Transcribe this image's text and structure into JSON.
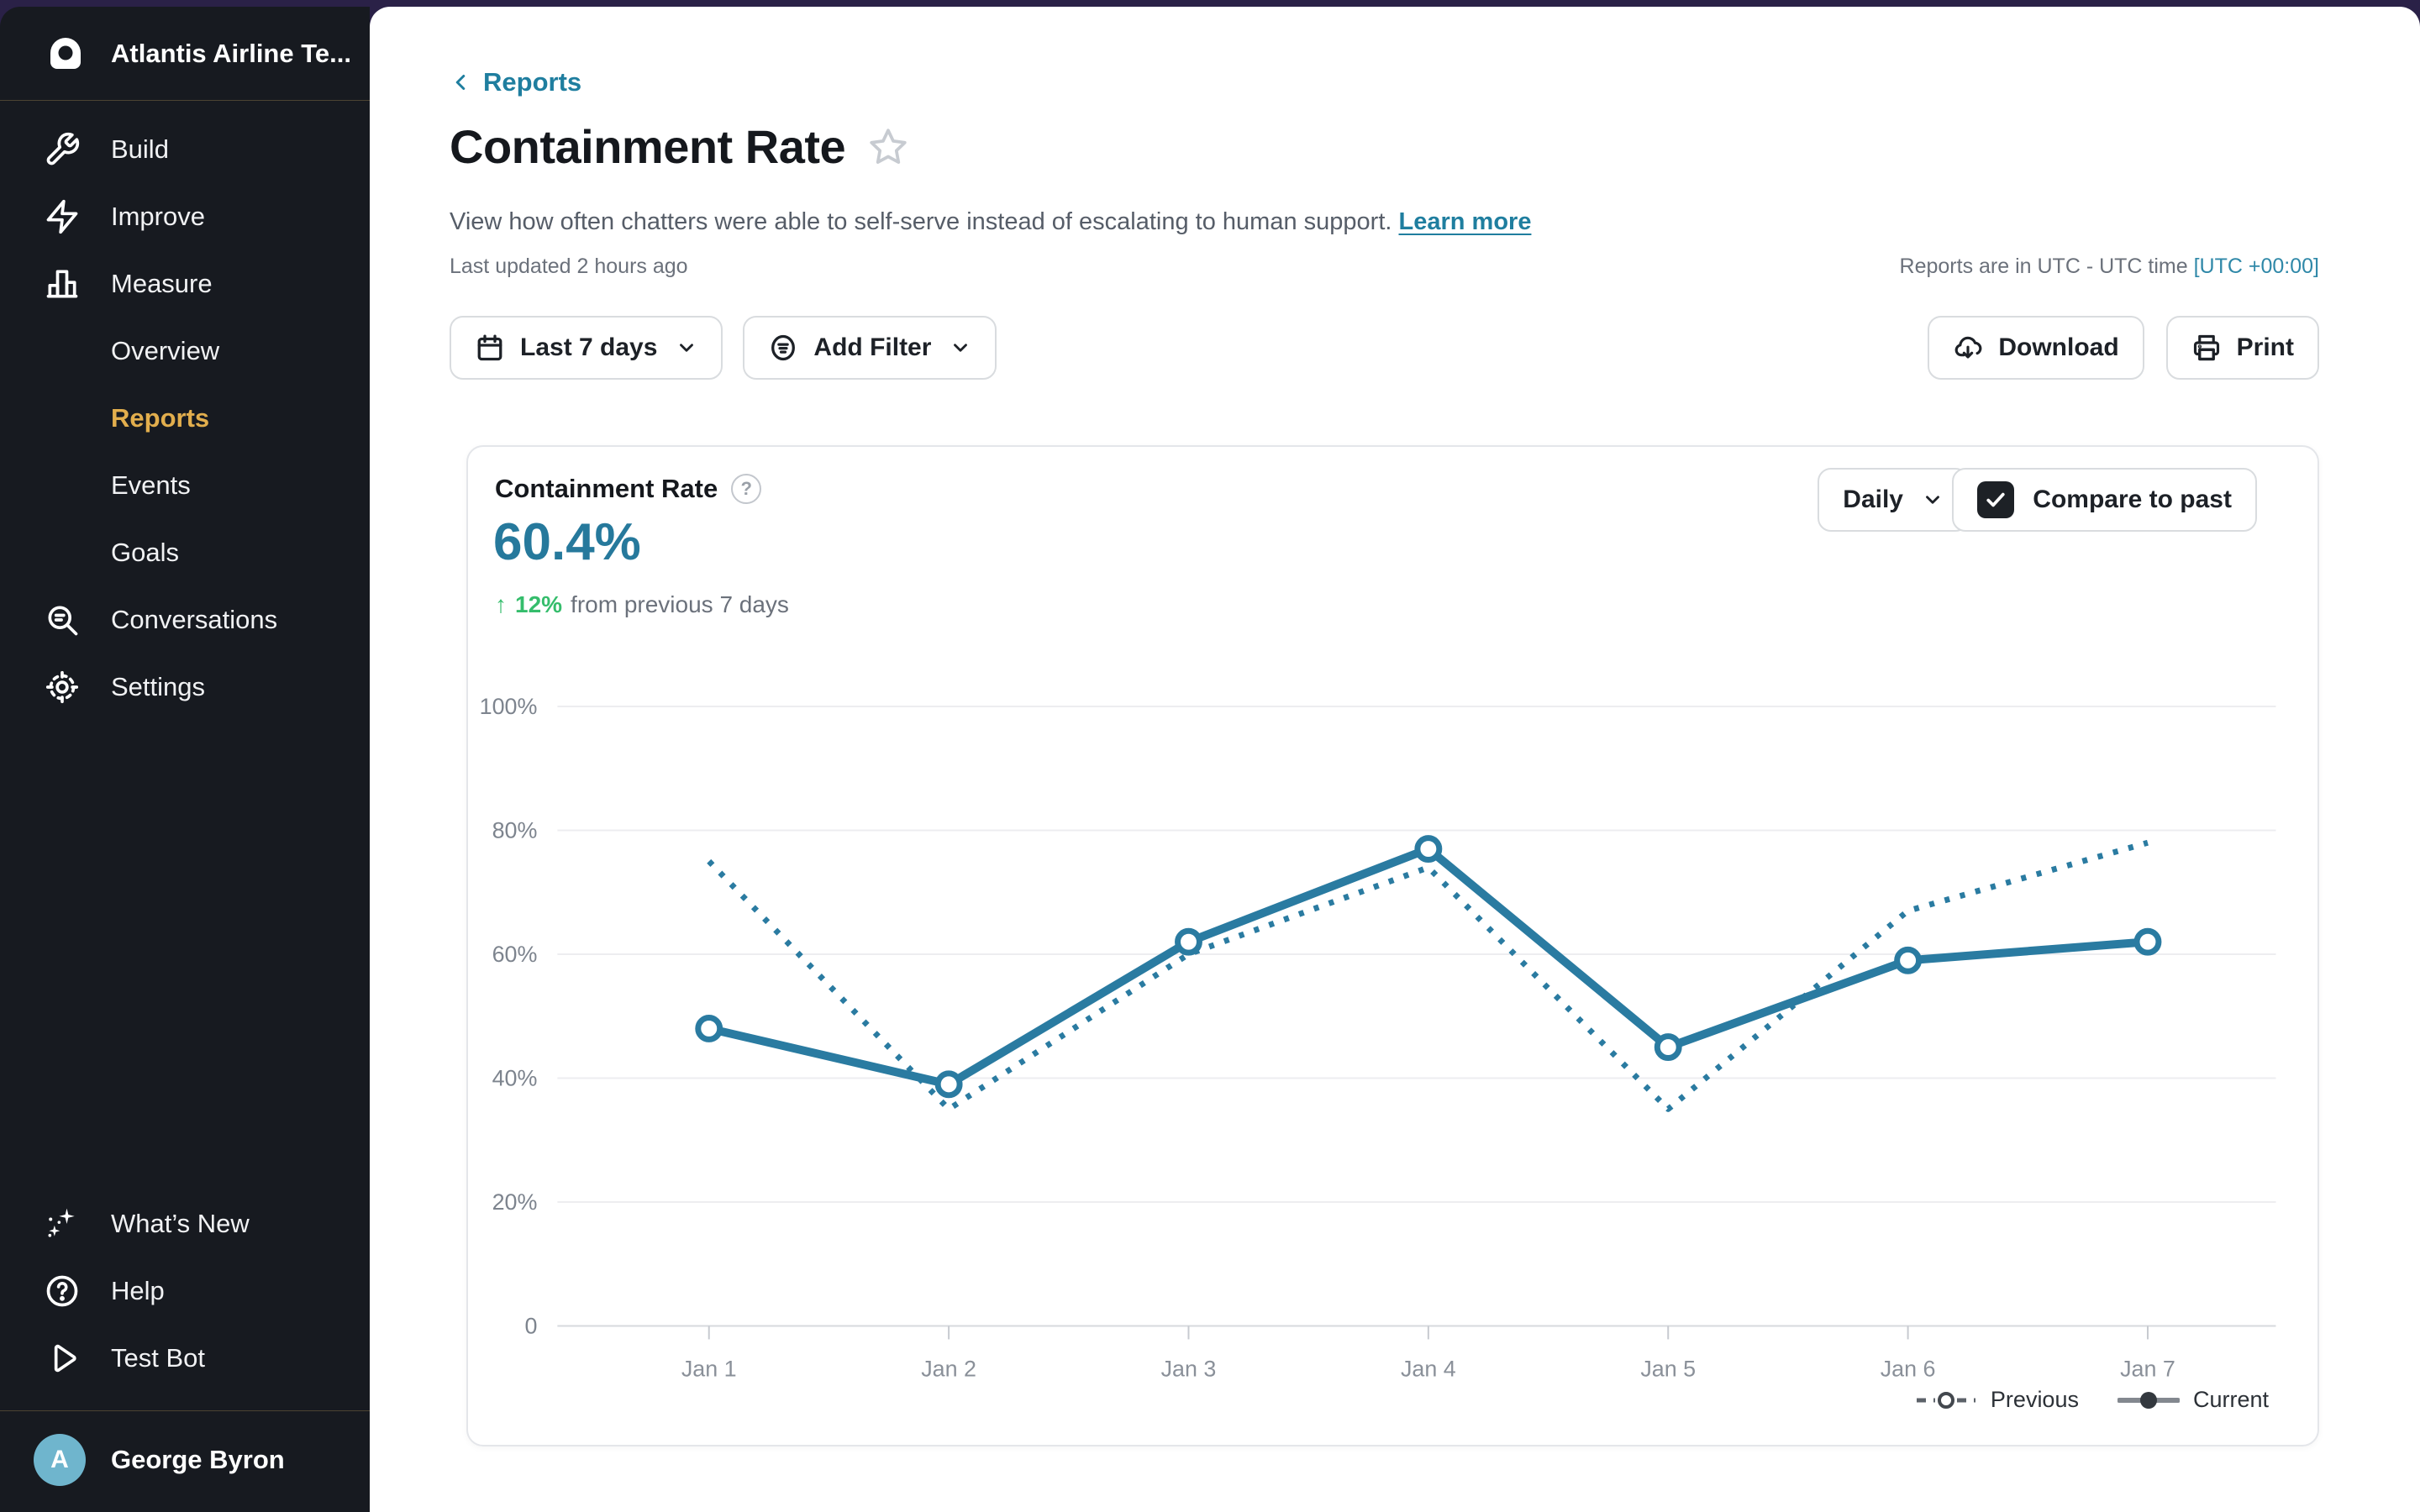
{
  "sidebar": {
    "team_name": "Atlantis Airline Te...",
    "nav": [
      {
        "label": "Build"
      },
      {
        "label": "Improve"
      },
      {
        "label": "Measure"
      },
      {
        "label": "Overview"
      },
      {
        "label": "Reports"
      },
      {
        "label": "Events"
      },
      {
        "label": "Goals"
      },
      {
        "label": "Conversations"
      },
      {
        "label": "Settings"
      }
    ],
    "footer": [
      {
        "label": "What’s New"
      },
      {
        "label": "Help"
      },
      {
        "label": "Test Bot"
      }
    ],
    "user": {
      "name": "George Byron",
      "avatar_initial": "A",
      "avatar_color": "#6fb5cd"
    },
    "active_color": "#e2ae4d"
  },
  "header": {
    "back_label": "Reports",
    "title": "Containment Rate",
    "description": "View how often chatters were able to self-serve instead of escalating to human support.",
    "learn_more": "Learn more",
    "last_updated": "Last updated 2 hours ago",
    "timezone_note": "Reports are in UTC - UTC time",
    "timezone_value": "[UTC +00:00]"
  },
  "toolbar": {
    "date_range_label": "Last 7 days",
    "add_filter_label": "Add Filter",
    "download_label": "Download",
    "print_label": "Print"
  },
  "card": {
    "title": "Containment Rate",
    "help_glyph": "?",
    "metric_value": "60.4%",
    "delta_arrow": "↑",
    "delta_value": "12%",
    "delta_suffix": "from previous 7 days",
    "granularity_label": "Daily",
    "compare_label": "Compare to past",
    "compare_checked": true
  },
  "chart_data": {
    "type": "line",
    "title": "Containment Rate",
    "x": [
      "Jan 1",
      "Jan 2",
      "Jan 3",
      "Jan 4",
      "Jan 5",
      "Jan 6",
      "Jan 7"
    ],
    "series": [
      {
        "name": "Previous",
        "style": "dotted",
        "values": [
          75,
          35,
          60,
          74,
          35,
          67,
          78
        ]
      },
      {
        "name": "Current",
        "style": "solid",
        "values": [
          48,
          39,
          62,
          77,
          45,
          59,
          62
        ]
      }
    ],
    "ylim": [
      0,
      100
    ],
    "yticks": [
      {
        "value": 0,
        "label": "0"
      },
      {
        "value": 20,
        "label": "20%"
      },
      {
        "value": 40,
        "label": "40%"
      },
      {
        "value": 60,
        "label": "60%"
      },
      {
        "value": 80,
        "label": "80%"
      },
      {
        "value": 100,
        "label": "100%"
      }
    ],
    "line_color": "#2A7BA1",
    "grid": true,
    "legend_position": "bottom-right",
    "legend": [
      "Previous",
      "Current"
    ]
  }
}
